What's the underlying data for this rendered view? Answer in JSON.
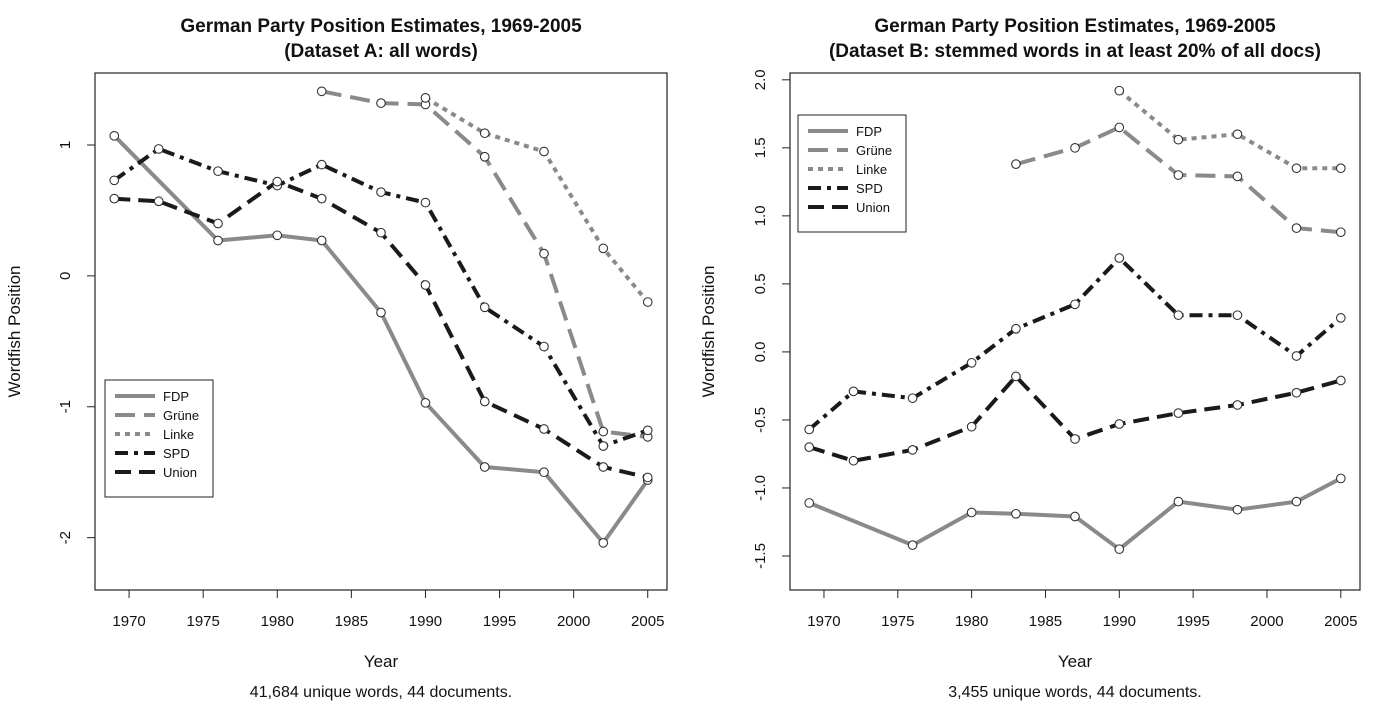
{
  "colors": {
    "gray": "#8a8a8a",
    "black": "#1a1a1a"
  },
  "chart_data": [
    {
      "type": "line",
      "title": "German Party Position Estimates, 1969-2005",
      "subtitle": "(Dataset A: all words)",
      "xlabel": "Year",
      "ylabel": "Wordfish Position",
      "caption": "41,684 unique words, 44 documents.",
      "xlim": [
        1967.7,
        2006.3
      ],
      "ylim": [
        -2.4,
        1.55
      ],
      "xticks": [
        1970,
        1975,
        1980,
        1985,
        1990,
        1995,
        2000,
        2005
      ],
      "yticks": [
        -2,
        -1,
        0,
        1
      ],
      "legend_position": "bottom-left",
      "series": [
        {
          "name": "FDP",
          "style": "solid",
          "color": "#8a8a8a",
          "x": [
            1969,
            1976,
            1980,
            1983,
            1987,
            1990,
            1994,
            1998,
            2002,
            2005
          ],
          "y": [
            1.07,
            0.27,
            0.31,
            0.27,
            -0.28,
            -0.97,
            -1.46,
            -1.5,
            -2.04,
            -1.56
          ]
        },
        {
          "name": "Grüne",
          "style": "longdash",
          "color": "#8a8a8a",
          "x": [
            1983,
            1987,
            1990,
            1994,
            1998,
            2002,
            2005
          ],
          "y": [
            1.41,
            1.32,
            1.31,
            0.91,
            0.17,
            -1.19,
            -1.23
          ]
        },
        {
          "name": "Linke",
          "style": "dotted",
          "color": "#8a8a8a",
          "x": [
            1990,
            1994,
            1998,
            2002,
            2005
          ],
          "y": [
            1.36,
            1.09,
            0.95,
            0.21,
            -0.2
          ]
        },
        {
          "name": "SPD",
          "style": "dashdot",
          "color": "#1a1a1a",
          "x": [
            1969,
            1972,
            1976,
            1980,
            1983,
            1987,
            1990,
            1994,
            1998,
            2002,
            2005
          ],
          "y": [
            0.73,
            0.97,
            0.8,
            0.69,
            0.85,
            0.64,
            0.56,
            -0.24,
            -0.54,
            -1.3,
            -1.18
          ]
        },
        {
          "name": "Union",
          "style": "dashed",
          "color": "#1a1a1a",
          "x": [
            1969,
            1972,
            1976,
            1980,
            1983,
            1987,
            1990,
            1994,
            1998,
            2002,
            2005
          ],
          "y": [
            0.59,
            0.57,
            0.4,
            0.72,
            0.59,
            0.33,
            -0.07,
            -0.96,
            -1.17,
            -1.46,
            -1.54
          ]
        }
      ]
    },
    {
      "type": "line",
      "title": "German Party Position Estimates, 1969-2005",
      "subtitle": "(Dataset B: stemmed words in at least 20% of all docs)",
      "xlabel": "Year",
      "ylabel": "Wordfish Position",
      "caption": "3,455 unique words, 44 documents.",
      "xlim": [
        1967.7,
        2006.3
      ],
      "ylim": [
        -1.75,
        2.05
      ],
      "xticks": [
        1970,
        1975,
        1980,
        1985,
        1990,
        1995,
        2000,
        2005
      ],
      "yticks": [
        -1.5,
        -1.0,
        -0.5,
        0.0,
        0.5,
        1.0,
        1.5,
        2.0
      ],
      "ytick_labels": [
        "-1.5",
        "-1.0",
        "-0.5",
        "0.0",
        "0.5",
        "1.0",
        "1.5",
        "2.0"
      ],
      "legend_position": "top-left",
      "series": [
        {
          "name": "FDP",
          "style": "solid",
          "color": "#8a8a8a",
          "x": [
            1969,
            1976,
            1980,
            1983,
            1987,
            1990,
            1994,
            1998,
            2002,
            2005
          ],
          "y": [
            -1.11,
            -1.42,
            -1.18,
            -1.19,
            -1.21,
            -1.45,
            -1.1,
            -1.16,
            -1.1,
            -0.93
          ]
        },
        {
          "name": "Grüne",
          "style": "longdash",
          "color": "#8a8a8a",
          "x": [
            1983,
            1987,
            1990,
            1994,
            1998,
            2002,
            2005
          ],
          "y": [
            1.38,
            1.5,
            1.65,
            1.3,
            1.29,
            0.91,
            0.88
          ]
        },
        {
          "name": "Linke",
          "style": "dotted",
          "color": "#8a8a8a",
          "x": [
            1990,
            1994,
            1998,
            2002,
            2005
          ],
          "y": [
            1.92,
            1.56,
            1.6,
            1.35,
            1.35
          ]
        },
        {
          "name": "SPD",
          "style": "dashdot",
          "color": "#1a1a1a",
          "x": [
            1969,
            1972,
            1976,
            1980,
            1983,
            1987,
            1990,
            1994,
            1998,
            2002,
            2005
          ],
          "y": [
            -0.57,
            -0.29,
            -0.34,
            -0.08,
            0.17,
            0.35,
            0.69,
            0.27,
            0.27,
            -0.03,
            0.25
          ]
        },
        {
          "name": "Union",
          "style": "dashed",
          "color": "#1a1a1a",
          "x": [
            1969,
            1972,
            1976,
            1980,
            1983,
            1987,
            1990,
            1994,
            1998,
            2002,
            2005
          ],
          "y": [
            -0.7,
            -0.8,
            -0.72,
            -0.55,
            -0.18,
            -0.64,
            -0.53,
            -0.45,
            -0.39,
            -0.3,
            -0.21
          ]
        }
      ]
    }
  ]
}
